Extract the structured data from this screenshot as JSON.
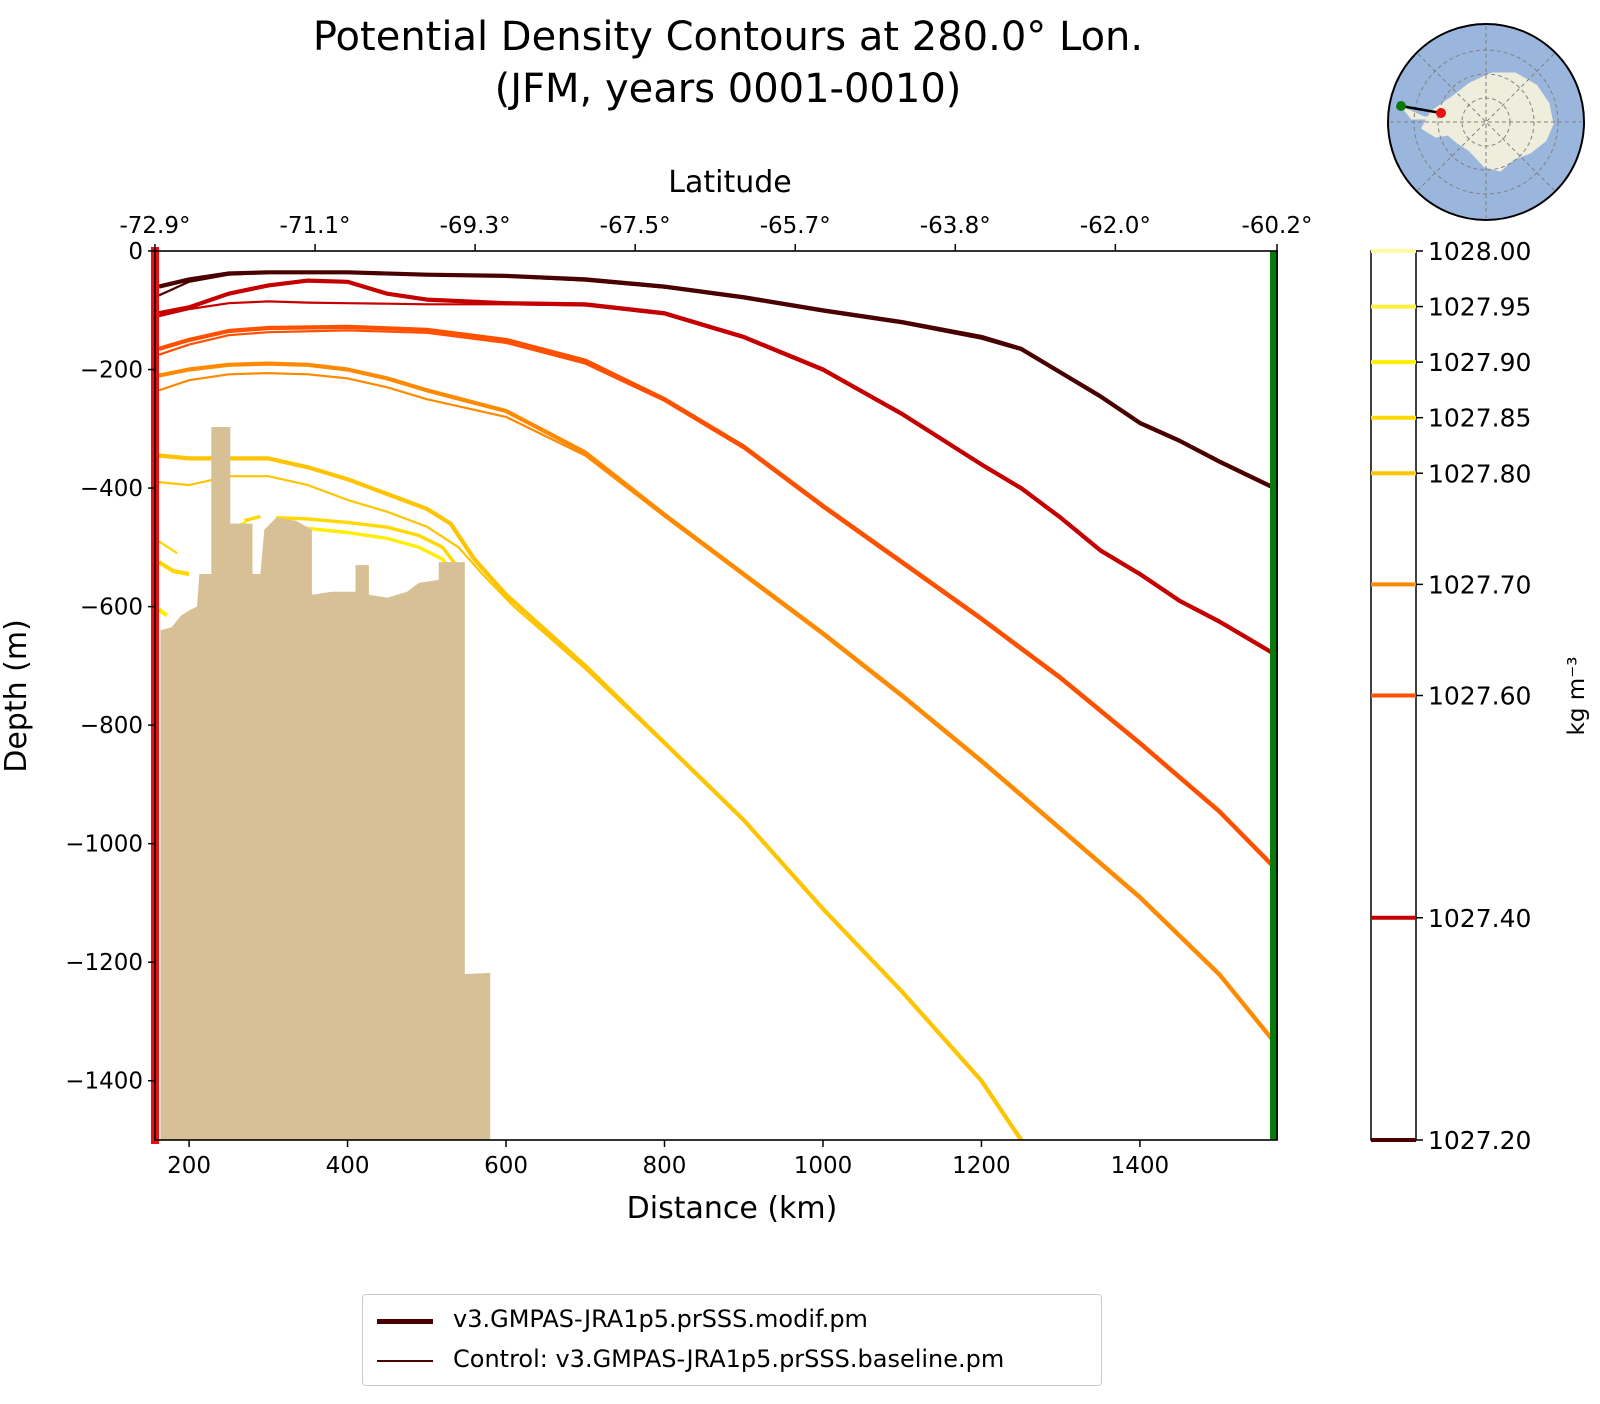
{
  "chart_data": {
    "type": "contour",
    "title_line1": "Potential Density Contours at 280.0° Lon.",
    "title_line2": "(JFM, years 0001-0010)",
    "xlabel": "Distance (km)",
    "ylabel": "Depth (m)",
    "top_xlabel": "Latitude",
    "xlim": [
      157,
      1573
    ],
    "ylim": [
      -1500,
      0
    ],
    "x_ticks": [
      200,
      400,
      600,
      800,
      1000,
      1200,
      1400
    ],
    "x_tick_labels": [
      "200",
      "400",
      "600",
      "800",
      "1000",
      "1200",
      "1400"
    ],
    "y_ticks": [
      0,
      -200,
      -400,
      -600,
      -800,
      -1000,
      -1200,
      -1400
    ],
    "y_tick_labels": [
      "0",
      "−200",
      "−400",
      "−600",
      "−800",
      "−1000",
      "−1200",
      "−1400"
    ],
    "lat_ticks": [
      157,
      359,
      561,
      763,
      965,
      1167,
      1369,
      1573
    ],
    "lat_tick_labels": [
      "-72.9°",
      "-71.1°",
      "-69.3°",
      "-67.5°",
      "-65.7°",
      "-63.8°",
      "-62.0°",
      "-60.2°"
    ],
    "colorbar": {
      "label": "kg m⁻³",
      "levels": [
        1027.2,
        1027.4,
        1027.6,
        1027.7,
        1027.8,
        1027.85,
        1027.9,
        1027.95,
        1028.0
      ],
      "tick_labels": [
        "1027.20",
        "1027.40",
        "1027.60",
        "1027.70",
        "1027.80",
        "1027.85",
        "1027.90",
        "1027.95",
        "1028.00"
      ],
      "colors": [
        "#4a0000",
        "#c40000",
        "#ff5000",
        "#ff8a00",
        "#ffc400",
        "#ffd800",
        "#ffee00",
        "#fff040",
        "#fffaa0"
      ]
    },
    "contours": [
      {
        "level": 1027.2,
        "color": "#4a0000",
        "main": [
          [
            162,
            -60
          ],
          [
            200,
            -48
          ],
          [
            250,
            -38
          ],
          [
            300,
            -36
          ],
          [
            400,
            -36
          ],
          [
            500,
            -40
          ],
          [
            600,
            -42
          ],
          [
            700,
            -48
          ],
          [
            800,
            -60
          ],
          [
            900,
            -78
          ],
          [
            1000,
            -100
          ],
          [
            1100,
            -120
          ],
          [
            1200,
            -145
          ],
          [
            1250,
            -165
          ],
          [
            1300,
            -205
          ],
          [
            1350,
            -245
          ],
          [
            1400,
            -290
          ],
          [
            1450,
            -320
          ],
          [
            1500,
            -355
          ],
          [
            1570,
            -400
          ]
        ],
        "control": [
          [
            162,
            -75
          ],
          [
            200,
            -52
          ],
          [
            250,
            -40
          ],
          [
            300,
            -37
          ],
          [
            400,
            -37
          ],
          [
            500,
            -41
          ],
          [
            600,
            -43
          ],
          [
            700,
            -50
          ],
          [
            800,
            -62
          ],
          [
            900,
            -80
          ],
          [
            1000,
            -102
          ],
          [
            1100,
            -122
          ],
          [
            1200,
            -148
          ],
          [
            1250,
            -167
          ],
          [
            1300,
            -207
          ],
          [
            1350,
            -247
          ],
          [
            1400,
            -292
          ],
          [
            1450,
            -322
          ],
          [
            1500,
            -357
          ],
          [
            1570,
            -402
          ]
        ]
      },
      {
        "level": 1027.4,
        "color": "#c40000",
        "main": [
          [
            162,
            -105
          ],
          [
            200,
            -95
          ],
          [
            250,
            -72
          ],
          [
            300,
            -58
          ],
          [
            350,
            -50
          ],
          [
            400,
            -52
          ],
          [
            450,
            -72
          ],
          [
            500,
            -82
          ],
          [
            600,
            -88
          ],
          [
            700,
            -90
          ],
          [
            800,
            -105
          ],
          [
            900,
            -145
          ],
          [
            1000,
            -200
          ],
          [
            1100,
            -275
          ],
          [
            1200,
            -360
          ],
          [
            1250,
            -400
          ],
          [
            1300,
            -450
          ],
          [
            1350,
            -505
          ],
          [
            1400,
            -545
          ],
          [
            1450,
            -590
          ],
          [
            1500,
            -625
          ],
          [
            1570,
            -680
          ]
        ],
        "control": [
          [
            162,
            -110
          ],
          [
            200,
            -98
          ],
          [
            250,
            -88
          ],
          [
            300,
            -85
          ],
          [
            350,
            -87
          ],
          [
            400,
            -88
          ],
          [
            450,
            -89
          ],
          [
            500,
            -90
          ],
          [
            600,
            -90
          ],
          [
            700,
            -92
          ],
          [
            800,
            -107
          ],
          [
            900,
            -147
          ],
          [
            1000,
            -202
          ],
          [
            1100,
            -277
          ],
          [
            1200,
            -362
          ],
          [
            1250,
            -402
          ],
          [
            1300,
            -452
          ],
          [
            1350,
            -507
          ],
          [
            1400,
            -547
          ],
          [
            1450,
            -592
          ],
          [
            1500,
            -627
          ],
          [
            1570,
            -682
          ]
        ]
      },
      {
        "level": 1027.6,
        "color": "#ff5000",
        "main": [
          [
            162,
            -165
          ],
          [
            200,
            -150
          ],
          [
            250,
            -135
          ],
          [
            300,
            -130
          ],
          [
            400,
            -128
          ],
          [
            500,
            -133
          ],
          [
            600,
            -150
          ],
          [
            700,
            -185
          ],
          [
            800,
            -250
          ],
          [
            900,
            -330
          ],
          [
            1000,
            -430
          ],
          [
            1100,
            -525
          ],
          [
            1200,
            -620
          ],
          [
            1300,
            -720
          ],
          [
            1400,
            -830
          ],
          [
            1500,
            -945
          ],
          [
            1570,
            -1040
          ]
        ],
        "control": [
          [
            162,
            -175
          ],
          [
            200,
            -158
          ],
          [
            250,
            -142
          ],
          [
            300,
            -137
          ],
          [
            400,
            -134
          ],
          [
            500,
            -138
          ],
          [
            600,
            -155
          ],
          [
            700,
            -190
          ],
          [
            800,
            -253
          ],
          [
            900,
            -333
          ],
          [
            1000,
            -433
          ],
          [
            1100,
            -528
          ],
          [
            1200,
            -623
          ],
          [
            1300,
            -723
          ],
          [
            1400,
            -833
          ],
          [
            1500,
            -948
          ],
          [
            1570,
            -1043
          ]
        ]
      },
      {
        "level": 1027.7,
        "color": "#ff8a00",
        "main": [
          [
            162,
            -210
          ],
          [
            200,
            -200
          ],
          [
            250,
            -192
          ],
          [
            300,
            -190
          ],
          [
            350,
            -192
          ],
          [
            400,
            -200
          ],
          [
            450,
            -215
          ],
          [
            500,
            -235
          ],
          [
            600,
            -270
          ],
          [
            700,
            -340
          ],
          [
            800,
            -445
          ],
          [
            900,
            -545
          ],
          [
            1000,
            -645
          ],
          [
            1100,
            -750
          ],
          [
            1200,
            -860
          ],
          [
            1300,
            -975
          ],
          [
            1400,
            -1090
          ],
          [
            1500,
            -1220
          ],
          [
            1570,
            -1335
          ]
        ],
        "control": [
          [
            162,
            -235
          ],
          [
            200,
            -218
          ],
          [
            250,
            -208
          ],
          [
            300,
            -206
          ],
          [
            350,
            -208
          ],
          [
            400,
            -215
          ],
          [
            450,
            -230
          ],
          [
            500,
            -250
          ],
          [
            600,
            -280
          ],
          [
            700,
            -345
          ],
          [
            800,
            -448
          ],
          [
            900,
            -548
          ],
          [
            1000,
            -648
          ],
          [
            1100,
            -753
          ],
          [
            1200,
            -863
          ],
          [
            1300,
            -978
          ],
          [
            1400,
            -1093
          ],
          [
            1500,
            -1223
          ],
          [
            1570,
            -1338
          ]
        ]
      },
      {
        "level": 1027.8,
        "color": "#ffc400",
        "main": [
          [
            162,
            -345
          ],
          [
            200,
            -350
          ],
          [
            250,
            -350
          ],
          [
            300,
            -350
          ],
          [
            350,
            -365
          ],
          [
            400,
            -385
          ],
          [
            450,
            -410
          ],
          [
            500,
            -435
          ],
          [
            530,
            -460
          ],
          [
            560,
            -520
          ],
          [
            600,
            -580
          ],
          [
            700,
            -700
          ],
          [
            800,
            -830
          ],
          [
            900,
            -960
          ],
          [
            1000,
            -1110
          ],
          [
            1100,
            -1250
          ],
          [
            1200,
            -1400
          ],
          [
            1250,
            -1500
          ]
        ],
        "control": [
          [
            162,
            -390
          ],
          [
            200,
            -395
          ],
          [
            250,
            -380
          ],
          [
            300,
            -380
          ],
          [
            350,
            -395
          ],
          [
            400,
            -420
          ],
          [
            450,
            -440
          ],
          [
            500,
            -465
          ],
          [
            540,
            -500
          ],
          [
            570,
            -545
          ],
          [
            610,
            -600
          ],
          [
            700,
            -705
          ],
          [
            800,
            -832
          ],
          [
            900,
            -962
          ],
          [
            1000,
            -1112
          ],
          [
            1100,
            -1252
          ],
          [
            1200,
            -1402
          ],
          [
            1252,
            -1500
          ]
        ]
      },
      {
        "level": 1027.85,
        "color": "#ffd800",
        "main": [
          [
            162,
            -525
          ],
          [
            180,
            -540
          ],
          [
            200,
            -545
          ]
        ],
        "control": [
          [
            162,
            -490
          ],
          [
            185,
            -510
          ]
        ],
        "pieces": [
          [
            [
              310,
              -450
            ],
            [
              350,
              -452
            ],
            [
              400,
              -458
            ],
            [
              450,
              -466
            ],
            [
              490,
              -480
            ],
            [
              520,
              -500
            ],
            [
              537,
              -530
            ]
          ],
          [
            [
              270,
              -455
            ],
            [
              290,
              -448
            ]
          ]
        ]
      },
      {
        "level": 1027.9,
        "color": "#ffee00",
        "main": [
          [
            162,
            -605
          ],
          [
            172,
            -615
          ]
        ],
        "control": [],
        "pieces": [
          [
            [
              310,
              -465
            ],
            [
              350,
              -468
            ],
            [
              400,
              -475
            ],
            [
              450,
              -485
            ],
            [
              490,
              -500
            ],
            [
              520,
              -520
            ],
            [
              530,
              -540
            ]
          ],
          [
            [
              255,
              -468
            ],
            [
              272,
              -458
            ]
          ]
        ]
      }
    ],
    "bathymetry": [
      [
        164,
        -1500
      ],
      [
        164,
        -640
      ],
      [
        178,
        -635
      ],
      [
        190,
        -615
      ],
      [
        202,
        -605
      ],
      [
        210,
        -600
      ],
      [
        213,
        -545
      ],
      [
        228,
        -545
      ],
      [
        228,
        -297
      ],
      [
        252,
        -297
      ],
      [
        252,
        -460
      ],
      [
        280,
        -460
      ],
      [
        280,
        -545
      ],
      [
        290,
        -545
      ],
      [
        295,
        -470
      ],
      [
        310,
        -450
      ],
      [
        335,
        -455
      ],
      [
        355,
        -470
      ],
      [
        355,
        -580
      ],
      [
        380,
        -575
      ],
      [
        410,
        -575
      ],
      [
        410,
        -530
      ],
      [
        427,
        -530
      ],
      [
        427,
        -580
      ],
      [
        450,
        -585
      ],
      [
        475,
        -575
      ],
      [
        490,
        -560
      ],
      [
        515,
        -555
      ],
      [
        515,
        -525
      ],
      [
        548,
        -525
      ],
      [
        548,
        -1220
      ],
      [
        580,
        -1218
      ],
      [
        580,
        -1500
      ]
    ],
    "bathymetry_color": "#d8c096",
    "section_start_line": {
      "x": 157,
      "color": "#e81010"
    },
    "section_end_line": {
      "x": 1573,
      "color": "#0a7a0a"
    },
    "legend": [
      {
        "label": "v3.GMPAS-JRA1p5.prSSS.modif.pm",
        "style": "thick",
        "color": "#4a0000"
      },
      {
        "label": "Control: v3.GMPAS-JRA1p5.prSSS.baseline.pm",
        "style": "thin",
        "color": "#4a0000"
      }
    ],
    "inset_map": {
      "description_name": "antarctic-locator-map",
      "ocean": "#9bb6dc",
      "land": "#efeedd",
      "start_marker": "#e81010",
      "end_marker": "#0a7a0a"
    }
  }
}
